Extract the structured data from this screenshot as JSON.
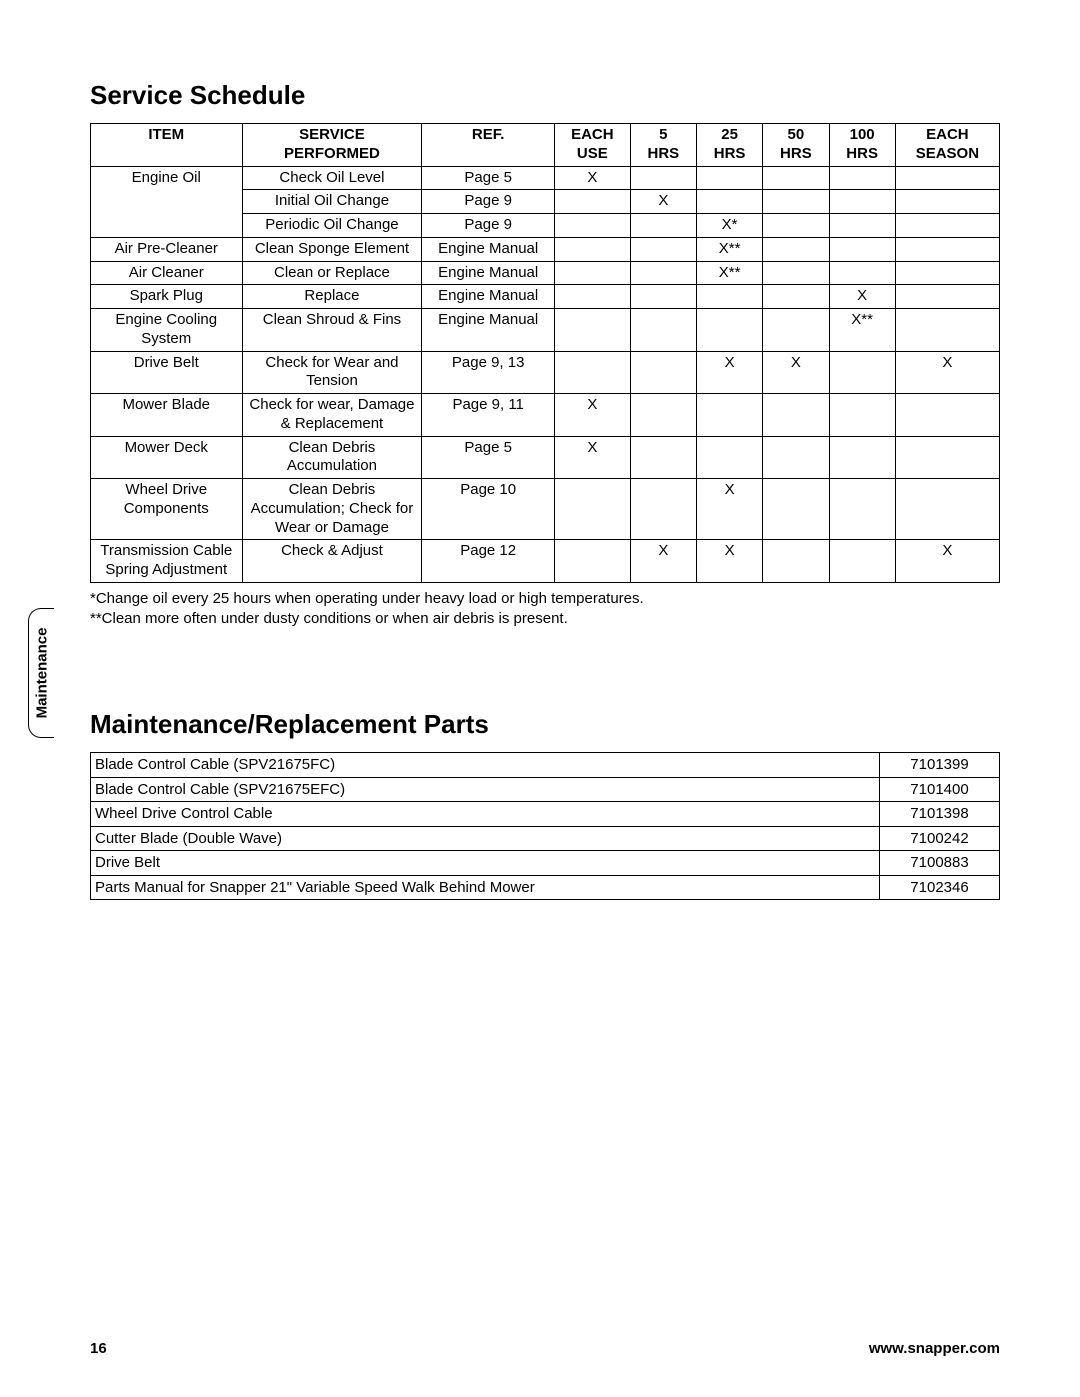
{
  "side_tab": "Maintenance",
  "section1_title": "Service Schedule",
  "section2_title": "Maintenance/Replacement Parts",
  "schedule": {
    "col_widths_pct": [
      16,
      19,
      14,
      8,
      7,
      7,
      7,
      7,
      11
    ],
    "headers": [
      "ITEM",
      "SERVICE\nPERFORMED",
      "REF.",
      "EACH\nUSE",
      "5\nHRS",
      "25\nHRS",
      "50\nHRS",
      "100\nHRS",
      "EACH\nSEASON"
    ],
    "rows": [
      {
        "item": "Engine Oil",
        "svc": "Check Oil Level",
        "ref": "Page 5",
        "marks": [
          "X",
          "",
          "",
          "",
          "",
          ""
        ],
        "item_rowspan": 3
      },
      {
        "item": "",
        "svc": "Initial Oil Change",
        "ref": "Page 9",
        "marks": [
          "",
          "X",
          "",
          "",
          "",
          ""
        ],
        "cont": true
      },
      {
        "item": "",
        "svc": "Periodic Oil Change",
        "ref": "Page 9",
        "marks": [
          "",
          "",
          "X*",
          "",
          "",
          ""
        ],
        "cont": true
      },
      {
        "item": "Air Pre-Cleaner",
        "svc": "Clean Sponge Element",
        "ref": "Engine Manual",
        "marks": [
          "",
          "",
          "X**",
          "",
          "",
          ""
        ]
      },
      {
        "item": "Air Cleaner",
        "svc": "Clean or Replace",
        "ref": "Engine Manual",
        "marks": [
          "",
          "",
          "X**",
          "",
          "",
          ""
        ]
      },
      {
        "item": "Spark Plug",
        "svc": "Replace",
        "ref": "Engine Manual",
        "marks": [
          "",
          "",
          "",
          "",
          "X",
          ""
        ]
      },
      {
        "item": "Engine Cooling\nSystem",
        "svc": "Clean Shroud & Fins",
        "ref": "Engine Manual",
        "marks": [
          "",
          "",
          "",
          "",
          "X**",
          ""
        ]
      },
      {
        "item": "Drive Belt",
        "svc": "Check for Wear and\nTension",
        "ref": "Page 9, 13",
        "marks": [
          "",
          "",
          "X",
          "X",
          "",
          "X"
        ]
      },
      {
        "item": "Mower Blade",
        "svc": "Check for wear, Damage\n& Replacement",
        "ref": "Page 9, 11",
        "marks": [
          "X",
          "",
          "",
          "",
          "",
          ""
        ]
      },
      {
        "item": "Mower Deck",
        "svc": "Clean Debris\nAccumulation",
        "ref": "Page 5",
        "marks": [
          "X",
          "",
          "",
          "",
          "",
          ""
        ]
      },
      {
        "item": "Wheel Drive\nComponents",
        "svc": "Clean Debris\nAccumulation; Check for\nWear or Damage",
        "ref": "Page 10",
        "marks": [
          "",
          "",
          "X",
          "",
          "",
          ""
        ]
      },
      {
        "item": "Transmission Cable\nSpring Adjustment",
        "svc": "Check & Adjust",
        "ref": "Page 12",
        "marks": [
          "",
          "X",
          "X",
          "",
          "",
          "X"
        ]
      }
    ]
  },
  "footnotes": [
    "*Change oil every 25 hours when operating under heavy load or high temperatures.",
    "**Clean more often under dusty conditions or when air debris is present."
  ],
  "parts": {
    "rows": [
      {
        "name": "Blade Control Cable (SPV21675FC)",
        "pn": "7101399"
      },
      {
        "name": "Blade Control Cable (SPV21675EFC)",
        "pn": "7101400"
      },
      {
        "name": "Wheel Drive Control Cable",
        "pn": "7101398"
      },
      {
        "name": "Cutter Blade (Double Wave)",
        "pn": "7100242"
      },
      {
        "name": "Drive Belt",
        "pn": "7100883"
      },
      {
        "name": "Parts Manual for Snapper 21\" Variable Speed Walk Behind Mower",
        "pn": "7102346"
      }
    ]
  },
  "footer": {
    "page": "16",
    "url": "www.snapper.com"
  }
}
